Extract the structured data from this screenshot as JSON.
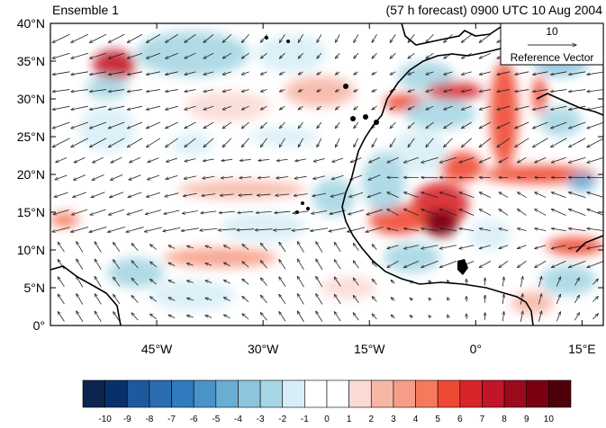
{
  "title_left": "Ensemble 1",
  "title_right": "(57 h forecast) 0900 UTC 10 Aug 2004",
  "map": {
    "lon_range": [
      -60,
      18
    ],
    "lat_range": [
      0,
      40
    ],
    "lat_ticks": [
      {
        "value": 40,
        "label": "40°N"
      },
      {
        "value": 35,
        "label": "35°N"
      },
      {
        "value": 30,
        "label": "30°N"
      },
      {
        "value": 25,
        "label": "25°N"
      },
      {
        "value": 20,
        "label": "20°N"
      },
      {
        "value": 15,
        "label": "15°N"
      },
      {
        "value": 10,
        "label": "10°N"
      },
      {
        "value": 5,
        "label": "5°N"
      },
      {
        "value": 0,
        "label": "0°"
      }
    ],
    "lon_ticks": [
      {
        "value": -45,
        "label": "45°W"
      },
      {
        "value": -30,
        "label": "30°W"
      },
      {
        "value": -15,
        "label": "15°W"
      },
      {
        "value": 0,
        "label": "0°"
      },
      {
        "value": 15,
        "label": "15°E"
      }
    ],
    "anomaly_blobs": [
      {
        "lon": -51,
        "lat": 34.5,
        "rx": 3,
        "ry": 2,
        "v": 7
      },
      {
        "lon": -52,
        "lat": 31.5,
        "rx": 3,
        "ry": 1.5,
        "v": -3
      },
      {
        "lon": -52,
        "lat": 26,
        "rx": 4,
        "ry": 3,
        "v": -2
      },
      {
        "lon": -40,
        "lat": 36,
        "rx": 8,
        "ry": 3,
        "v": -3
      },
      {
        "lon": -26,
        "lat": 36,
        "rx": 5,
        "ry": 2.5,
        "v": -2
      },
      {
        "lon": -35,
        "lat": 29,
        "rx": 6,
        "ry": 2,
        "v": 1
      },
      {
        "lon": -22,
        "lat": 31,
        "rx": 5,
        "ry": 2,
        "v": 2
      },
      {
        "lon": -27,
        "lat": 25,
        "rx": 5,
        "ry": 1.2,
        "v": -2
      },
      {
        "lon": -40,
        "lat": 24,
        "rx": 3,
        "ry": 1.5,
        "v": -2
      },
      {
        "lon": -33,
        "lat": 18,
        "rx": 9,
        "ry": 1.2,
        "v": 2
      },
      {
        "lon": -30,
        "lat": 13,
        "rx": 6,
        "ry": 2,
        "v": -2
      },
      {
        "lon": -20,
        "lat": 17,
        "rx": 3,
        "ry": 2.5,
        "v": -3
      },
      {
        "lon": -36,
        "lat": 9,
        "rx": 8,
        "ry": 1.3,
        "v": 3
      },
      {
        "lon": -48,
        "lat": 7,
        "rx": 4,
        "ry": 2,
        "v": -3
      },
      {
        "lon": -40,
        "lat": 4,
        "rx": 6,
        "ry": 2,
        "v": -2
      },
      {
        "lon": -58,
        "lat": 14,
        "rx": 2,
        "ry": 1,
        "v": 4
      },
      {
        "lon": -18,
        "lat": 5,
        "rx": 4,
        "ry": 1.5,
        "v": 1
      },
      {
        "lon": -7,
        "lat": 33,
        "rx": 4,
        "ry": 2,
        "v": -3
      },
      {
        "lon": -3,
        "lat": 31,
        "rx": 4,
        "ry": 1.2,
        "v": 6
      },
      {
        "lon": -10,
        "lat": 29.5,
        "rx": 3,
        "ry": 1.2,
        "v": 5
      },
      {
        "lon": -5,
        "lat": 28,
        "rx": 5,
        "ry": 2,
        "v": -3
      },
      {
        "lon": 4,
        "lat": 28,
        "rx": 2,
        "ry": 7,
        "v": 5
      },
      {
        "lon": -2,
        "lat": 21,
        "rx": 3,
        "ry": 2,
        "v": 5
      },
      {
        "lon": -8,
        "lat": 23,
        "rx": 4,
        "ry": 3,
        "v": -2
      },
      {
        "lon": -5,
        "lat": 16,
        "rx": 4,
        "ry": 3,
        "v": 6
      },
      {
        "lon": -5,
        "lat": 13.5,
        "rx": 2.5,
        "ry": 1.8,
        "v": 9
      },
      {
        "lon": -11,
        "lat": 14,
        "rx": 4,
        "ry": 2,
        "v": 5
      },
      {
        "lon": -13,
        "lat": 19,
        "rx": 3,
        "ry": 4,
        "v": -3
      },
      {
        "lon": -9,
        "lat": 9,
        "rx": 4,
        "ry": 2,
        "v": -3
      },
      {
        "lon": 2,
        "lat": 12,
        "rx": 3,
        "ry": 2,
        "v": -2
      },
      {
        "lon": 9,
        "lat": 20,
        "rx": 8,
        "ry": 1.2,
        "v": 5
      },
      {
        "lon": 15,
        "lat": 19,
        "rx": 2,
        "ry": 1.2,
        "v": -5
      },
      {
        "lon": 12,
        "lat": 35,
        "rx": 4,
        "ry": 2,
        "v": -4
      },
      {
        "lon": 9,
        "lat": 30.5,
        "rx": 1,
        "ry": 2.5,
        "v": 5
      },
      {
        "lon": 12,
        "lat": 27,
        "rx": 3,
        "ry": 2,
        "v": -3
      },
      {
        "lon": 14,
        "lat": 10.5,
        "rx": 4,
        "ry": 1.2,
        "v": 5
      },
      {
        "lon": 13,
        "lat": 6,
        "rx": 4,
        "ry": 2,
        "v": -3
      },
      {
        "lon": 8,
        "lat": 3,
        "rx": 3,
        "ry": 1.5,
        "v": 2
      }
    ]
  },
  "reference_vector": {
    "value": "10",
    "label": "Reference Vector"
  },
  "colorbar": {
    "labels": [
      "-10",
      "-9",
      "-8",
      "-7",
      "-6",
      "-5",
      "-4",
      "-3",
      "-2",
      "-1",
      "0",
      "1",
      "2",
      "3",
      "4",
      "5",
      "6",
      "7",
      "8",
      "9",
      "10"
    ],
    "colors": [
      "#0b2550",
      "#08306b",
      "#1c5a9e",
      "#2a6db0",
      "#2f7bbd",
      "#4a93c9",
      "#6aaed6",
      "#8cc5dd",
      "#a6d6e3",
      "#d8eef7",
      "#ffffff",
      "#ffffff",
      "#fbdad6",
      "#f7b7a7",
      "#f79c86",
      "#f57a5c",
      "#ef4b33",
      "#d8252a",
      "#c3142a",
      "#9c0a1e",
      "#7a0011",
      "#4e000a"
    ]
  }
}
